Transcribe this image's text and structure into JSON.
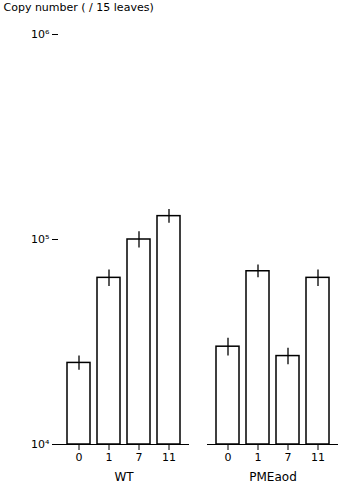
{
  "chart_data": {
    "type": "bar",
    "ylabel": "Copy number ( / 15 leaves)",
    "categories": [
      "0",
      "1",
      "7",
      "11"
    ],
    "series": [
      {
        "name": "WT",
        "values": [
          25000,
          65000,
          100000,
          130000
        ],
        "errors": [
          2000,
          6000,
          9000,
          10000
        ]
      },
      {
        "name": "PMEaod",
        "values": [
          30000,
          70000,
          27000,
          65000
        ],
        "errors": [
          3000,
          5000,
          2500,
          6000
        ]
      }
    ],
    "color": "#ffffff",
    "log": "y",
    "ylim": [
      10000,
      1000000
    ],
    "yticks": [
      {
        "value": 10000,
        "label": "10⁴"
      },
      {
        "value": 100000,
        "label": "10⁵"
      },
      {
        "value": 1000000,
        "label": "10⁶"
      }
    ],
    "grid": false
  }
}
